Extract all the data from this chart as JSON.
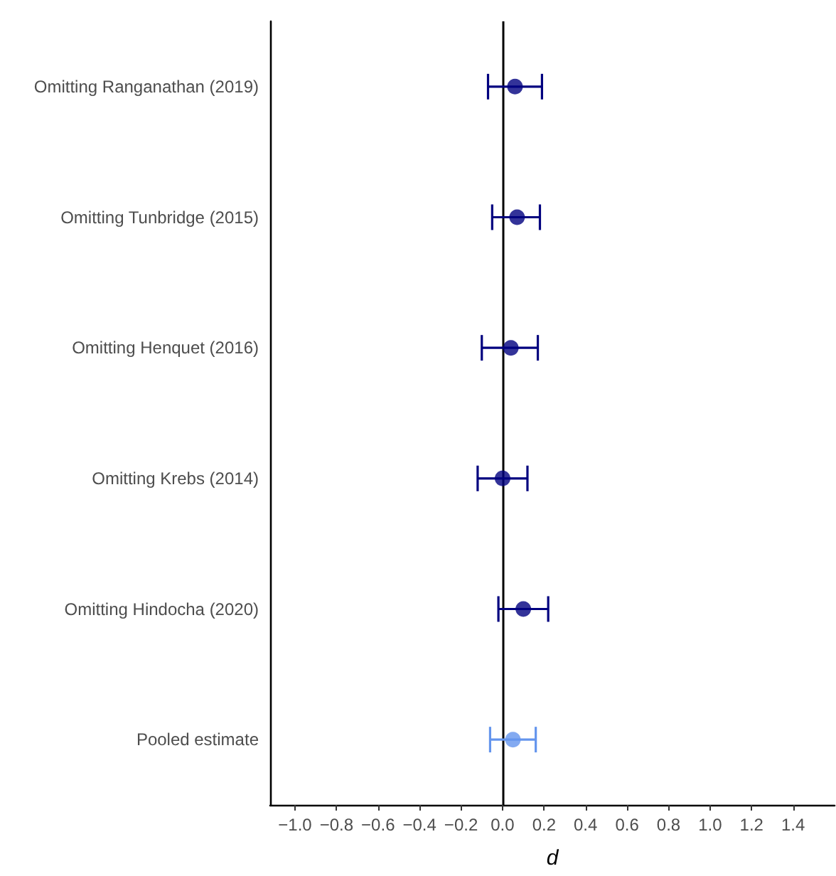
{
  "chart_data": {
    "type": "scatter",
    "orientation": "horizontal",
    "xlabel": "d",
    "categories": [
      "Omitting Ranganathan (2019)",
      "Omitting Tunbridge (2015)",
      "Omitting Henquet (2016)",
      "Omitting Krebs (2014)",
      "Omitting Hindocha (2020)",
      "Pooled estimate"
    ],
    "values": [
      0.06,
      0.07,
      0.04,
      0.0,
      0.1,
      0.05
    ],
    "errors": [
      [
        -0.07,
        0.19
      ],
      [
        -0.05,
        0.18
      ],
      [
        -0.1,
        0.17
      ],
      [
        -0.12,
        0.12
      ],
      [
        -0.02,
        0.22
      ],
      [
        -0.06,
        0.16
      ]
    ],
    "colors": [
      "#00007f",
      "#00007f",
      "#00007f",
      "#00007f",
      "#00007f",
      "#6495ed"
    ],
    "marker": "circle",
    "xlim": [
      -1.12,
      1.6
    ],
    "xticks": [
      {
        "value": -1.0,
        "label": "−1.0"
      },
      {
        "value": -0.8,
        "label": "−0.8"
      },
      {
        "value": -0.6,
        "label": "−0.6"
      },
      {
        "value": -0.4,
        "label": "−0.4"
      },
      {
        "value": -0.2,
        "label": "−0.2"
      },
      {
        "value": 0.0,
        "label": "0.0"
      },
      {
        "value": 0.2,
        "label": "0.2"
      },
      {
        "value": 0.4,
        "label": "0.4"
      },
      {
        "value": 0.6,
        "label": "0.6"
      },
      {
        "value": 0.8,
        "label": "0.8"
      },
      {
        "value": 1.0,
        "label": "1.0"
      },
      {
        "value": 1.2,
        "label": "1.2"
      },
      {
        "value": 1.4,
        "label": "1.4"
      }
    ],
    "ref_lines": [
      {
        "axis": "x",
        "value": 0,
        "color": "#000000"
      }
    ]
  }
}
